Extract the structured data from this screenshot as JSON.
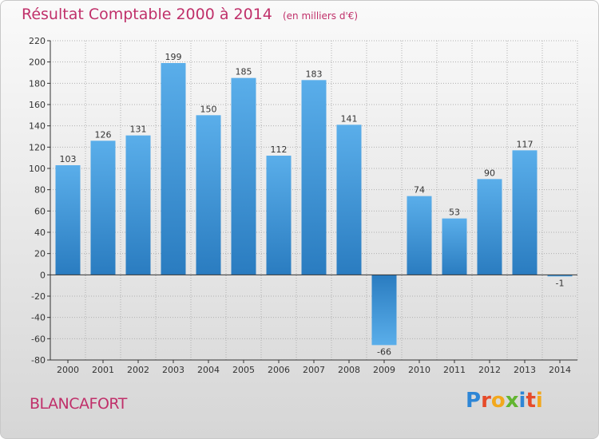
{
  "header": {
    "title": "Résultat Comptable 2000 à 2014",
    "subtitle": "(en milliers d'€)"
  },
  "footer": {
    "commune": "BLANCAFORT",
    "brand_letters": [
      "P",
      "r",
      "o",
      "x",
      "i",
      "t",
      "i"
    ],
    "brand_colors": [
      "#2e86d6",
      "#e64b2a",
      "#f2a81d",
      "#62b531",
      "#2e86d6",
      "#e64b2a",
      "#f2a81d"
    ]
  },
  "colors": {
    "text_accent": "#c0306a",
    "bar_top": "#5aaeea",
    "bar_bottom": "#2a7cc0",
    "axis": "#333333",
    "grid": "#b0b0b0"
  },
  "chart_data": {
    "type": "bar",
    "title": "Résultat Comptable 2000 à 2014",
    "subtitle": "(en milliers d'€)",
    "categories": [
      "2000",
      "2001",
      "2002",
      "2003",
      "2004",
      "2005",
      "2006",
      "2007",
      "2008",
      "2009",
      "2010",
      "2011",
      "2012",
      "2013",
      "2014"
    ],
    "values": [
      103,
      126,
      131,
      199,
      150,
      185,
      112,
      183,
      141,
      -66,
      74,
      53,
      90,
      117,
      -1
    ],
    "ylim": [
      -80,
      220
    ],
    "yticks": [
      -80,
      -60,
      -40,
      -20,
      0,
      20,
      40,
      60,
      80,
      100,
      120,
      140,
      160,
      180,
      200,
      220
    ],
    "xlabel": "",
    "ylabel": ""
  }
}
